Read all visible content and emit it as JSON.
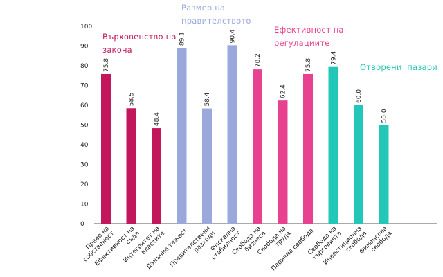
{
  "chart_data": {
    "type": "bar",
    "title": "",
    "xlabel": "",
    "ylabel": "",
    "ylim": [
      0,
      100
    ],
    "yticks": [
      0,
      10,
      20,
      30,
      40,
      50,
      60,
      70,
      80,
      90,
      100
    ],
    "grid": false,
    "categories": [
      [
        "Право на",
        "собственост"
      ],
      [
        "Ефективност на",
        "съда"
      ],
      [
        "Интегритет на",
        "властите"
      ],
      [
        "Данъчна тежест"
      ],
      [
        "Правителствени",
        "разходи"
      ],
      [
        "Фискална",
        "стабилност"
      ],
      [
        "Свобода на",
        "бизнеса"
      ],
      [
        "Свобода на",
        "труда"
      ],
      [
        "Парична свобода"
      ],
      [
        "Свобода на",
        "търговията"
      ],
      [
        "Инвестиционна",
        "свобода"
      ],
      [
        "Финансова",
        "свобода"
      ]
    ],
    "values": [
      75.8,
      58.5,
      48.4,
      89.1,
      58.4,
      90.4,
      78.2,
      62.4,
      75.8,
      79.4,
      60.0,
      50.0
    ],
    "value_labels": [
      "75.8",
      "58.5",
      "48.4",
      "89.1",
      "58.4",
      "90.4",
      "78.2",
      "62.4",
      "75.8",
      "79.4",
      "60.0",
      "50.0"
    ],
    "bar_group": [
      0,
      0,
      0,
      1,
      1,
      1,
      2,
      2,
      2,
      3,
      3,
      3
    ],
    "groups": [
      {
        "lines": [
          "Върховенство на",
          "закона"
        ],
        "color": "#c2185b"
      },
      {
        "lines": [
          "Размер на",
          "правителството"
        ],
        "color": "#9aa8dc"
      },
      {
        "lines": [
          "Ефективност на",
          "регулациите"
        ],
        "color": "#e8418f"
      },
      {
        "lines": [
          "Отворени  пазари"
        ],
        "color": "#22c7b8"
      }
    ]
  }
}
